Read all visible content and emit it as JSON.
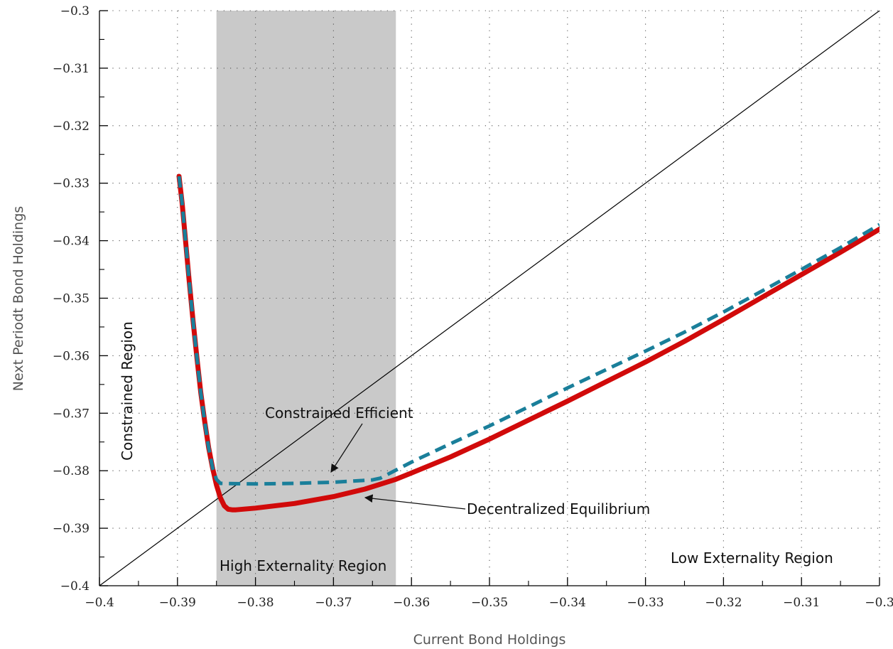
{
  "chart_data": {
    "type": "line",
    "title": "",
    "xlabel": "Current Bond Holdings",
    "ylabel": "Next Periodt Bond Holdings",
    "xlim": [
      -0.4,
      -0.3
    ],
    "ylim": [
      -0.4,
      -0.3
    ],
    "grid": "dotted",
    "x_ticks": [
      -0.4,
      -0.39,
      -0.38,
      -0.37,
      -0.36,
      -0.35,
      -0.34,
      -0.33,
      -0.32,
      -0.31,
      -0.3
    ],
    "x_tick_labels": [
      "−0.4",
      "−0.39",
      "−0.38",
      "−0.37",
      "−0.36",
      "−0.35",
      "−0.34",
      "−0.33",
      "−0.32",
      "−0.31",
      "−0.3"
    ],
    "y_ticks": [
      -0.4,
      -0.39,
      -0.38,
      -0.37,
      -0.36,
      -0.35,
      -0.34,
      -0.33,
      -0.32,
      -0.31,
      -0.3
    ],
    "y_tick_labels": [
      "−0.4",
      "−0.39",
      "−0.38",
      "−0.37",
      "−0.36",
      "−0.35",
      "−0.34",
      "−0.33",
      "−0.32",
      "−0.31",
      "−0.3"
    ],
    "shaded_region": {
      "x_from": -0.385,
      "x_to": -0.362,
      "color": "#c9c9c9"
    },
    "series": [
      {
        "style": "45-degree line",
        "color": "#000000",
        "x": [
          -0.4,
          -0.3
        ],
        "y": [
          -0.4,
          -0.3
        ]
      },
      {
        "style": "solid",
        "color": "#d10a0a",
        "x": [
          -0.3898,
          -0.3894,
          -0.389,
          -0.3885,
          -0.388,
          -0.3875,
          -0.387,
          -0.3865,
          -0.386,
          -0.3855,
          -0.385,
          -0.3845,
          -0.384,
          -0.3835,
          -0.383,
          -0.3825,
          -0.38,
          -0.375,
          -0.37,
          -0.366,
          -0.362,
          -0.36,
          -0.355,
          -0.35,
          -0.345,
          -0.34,
          -0.335,
          -0.33,
          -0.325,
          -0.32,
          -0.315,
          -0.31,
          -0.305,
          -0.3
        ],
        "y": [
          -0.3288,
          -0.3335,
          -0.3395,
          -0.347,
          -0.354,
          -0.3605,
          -0.3665,
          -0.3715,
          -0.376,
          -0.3795,
          -0.3825,
          -0.3847,
          -0.3861,
          -0.3867,
          -0.3868,
          -0.3868,
          -0.3865,
          -0.3857,
          -0.3845,
          -0.3832,
          -0.3815,
          -0.3804,
          -0.3776,
          -0.3745,
          -0.3712,
          -0.3679,
          -0.3645,
          -0.3611,
          -0.3575,
          -0.3537,
          -0.3498,
          -0.3459,
          -0.342,
          -0.338
        ]
      },
      {
        "style": "dashed",
        "color": "#1a7f9a",
        "x": [
          -0.3898,
          -0.3894,
          -0.389,
          -0.3885,
          -0.388,
          -0.3875,
          -0.387,
          -0.3865,
          -0.386,
          -0.3855,
          -0.385,
          -0.3845,
          -0.38,
          -0.375,
          -0.37,
          -0.365,
          -0.364,
          -0.362,
          -0.36,
          -0.355,
          -0.35,
          -0.345,
          -0.34,
          -0.335,
          -0.33,
          -0.325,
          -0.32,
          -0.315,
          -0.31,
          -0.305,
          -0.3
        ],
        "y": [
          -0.3288,
          -0.3335,
          -0.3395,
          -0.347,
          -0.354,
          -0.3605,
          -0.3665,
          -0.3715,
          -0.376,
          -0.3795,
          -0.3815,
          -0.3822,
          -0.3823,
          -0.3822,
          -0.382,
          -0.3816,
          -0.3813,
          -0.3799,
          -0.3785,
          -0.3753,
          -0.3722,
          -0.3689,
          -0.3656,
          -0.3624,
          -0.3592,
          -0.3559,
          -0.3524,
          -0.3487,
          -0.345,
          -0.3412,
          -0.3372
        ]
      }
    ],
    "annotations": {
      "constrained_region": "Constrained Region",
      "constrained_efficient": "Constrained Efficient",
      "decentralized_equilibrium": "Decentralized Equilibrium",
      "high_externality": "High Externality Region",
      "low_externality": "Low Externality Region"
    }
  }
}
